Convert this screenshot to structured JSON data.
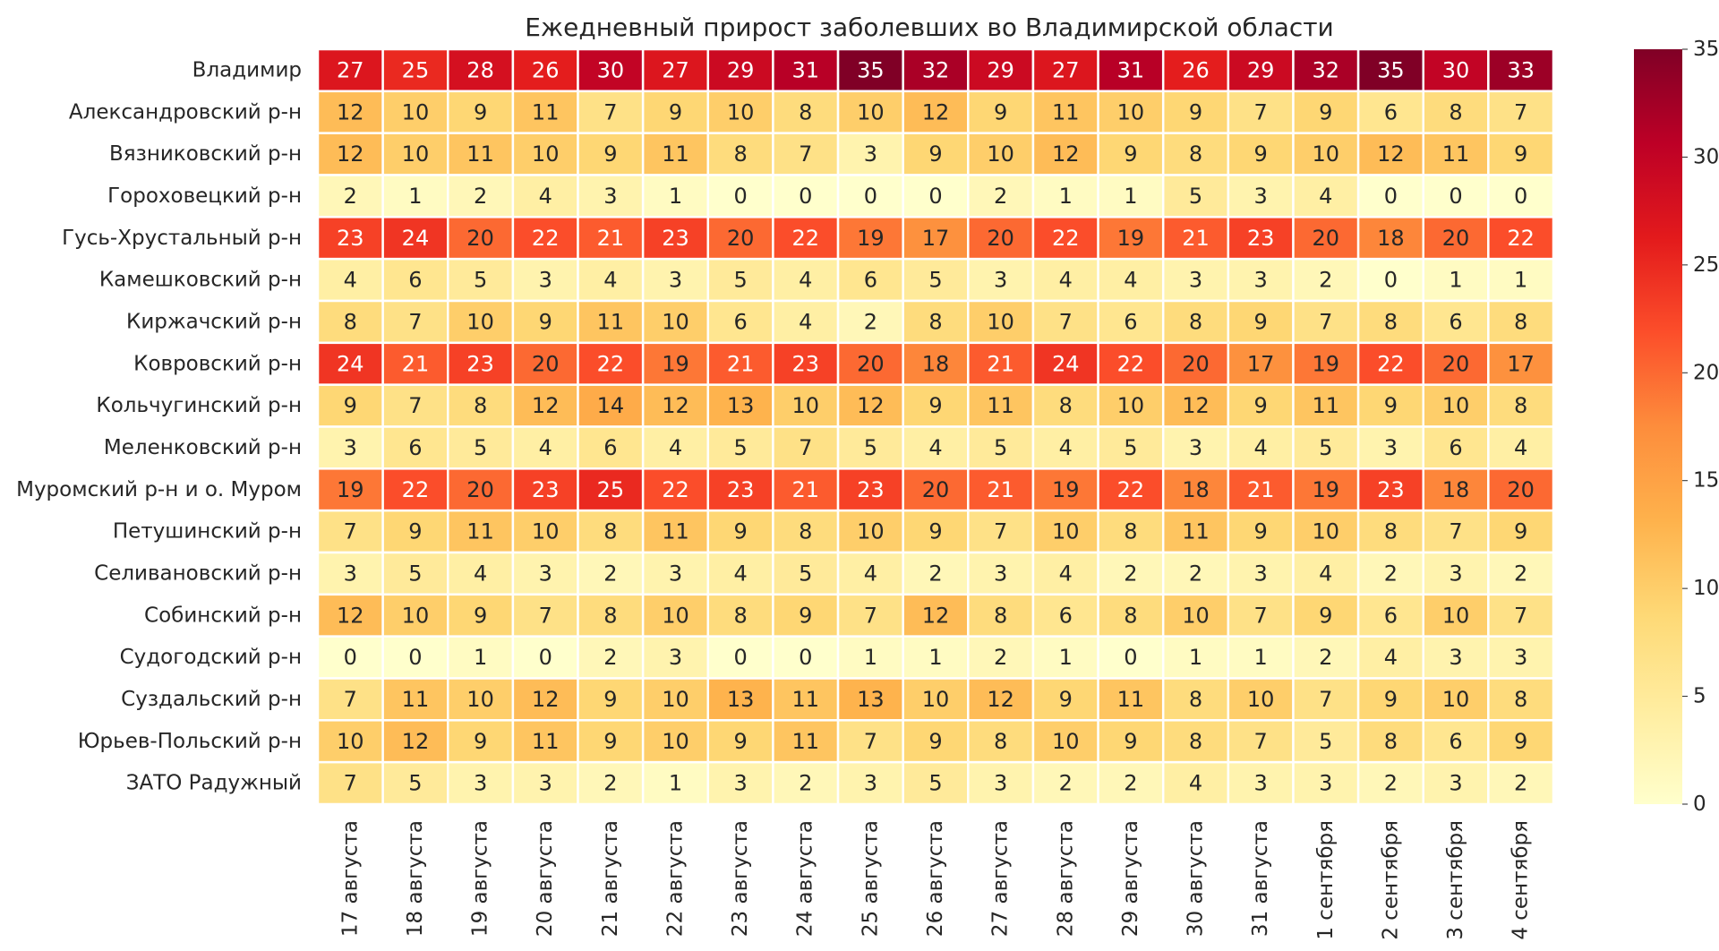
{
  "chart_data": {
    "type": "heatmap",
    "title": "Ежедневный прирост заболевших во Владимирской области",
    "xlabel": "",
    "ylabel": "",
    "x": [
      "17 августа",
      "18 августа",
      "19 августа",
      "20 августа",
      "21 августа",
      "22 августа",
      "23 августа",
      "24 августа",
      "25 августа",
      "26 августа",
      "27 августа",
      "28 августа",
      "29 августа",
      "30 августа",
      "31 августа",
      "1 сентября",
      "2 сентября",
      "3 сентября",
      "4 сентября"
    ],
    "y": [
      "Владимир",
      "Александровский р-н",
      "Вязниковский р-н",
      "Гороховецкий р-н",
      "Гусь-Хрустальный р-н",
      "Камешковский р-н",
      "Киржачский р-н",
      "Ковровский р-н",
      "Кольчугинский р-н",
      "Меленковский р-н",
      "Муромский р-н и о. Муром",
      "Петушинский р-н",
      "Селивановский р-н",
      "Собинский р-н",
      "Судогодский р-н",
      "Суздальский р-н",
      "Юрьев-Польский р-н",
      "ЗАТО Радужный"
    ],
    "values": [
      [
        27,
        25,
        28,
        26,
        30,
        27,
        29,
        31,
        35,
        32,
        29,
        27,
        31,
        26,
        29,
        32,
        35,
        30,
        33
      ],
      [
        12,
        10,
        9,
        11,
        7,
        9,
        10,
        8,
        10,
        12,
        9,
        11,
        10,
        9,
        7,
        9,
        6,
        8,
        7
      ],
      [
        12,
        10,
        11,
        10,
        9,
        11,
        8,
        7,
        3,
        9,
        10,
        12,
        9,
        8,
        9,
        10,
        12,
        11,
        9
      ],
      [
        2,
        1,
        2,
        4,
        3,
        1,
        0,
        0,
        0,
        0,
        2,
        1,
        1,
        5,
        3,
        4,
        0,
        0,
        0
      ],
      [
        23,
        24,
        20,
        22,
        21,
        23,
        20,
        22,
        19,
        17,
        20,
        22,
        19,
        21,
        23,
        20,
        18,
        20,
        22
      ],
      [
        4,
        6,
        5,
        3,
        4,
        3,
        5,
        4,
        6,
        5,
        3,
        4,
        4,
        3,
        3,
        2,
        0,
        1,
        1
      ],
      [
        8,
        7,
        10,
        9,
        11,
        10,
        6,
        4,
        2,
        8,
        10,
        7,
        6,
        8,
        9,
        7,
        8,
        6,
        8
      ],
      [
        24,
        21,
        23,
        20,
        22,
        19,
        21,
        23,
        20,
        18,
        21,
        24,
        22,
        20,
        17,
        19,
        22,
        20,
        17
      ],
      [
        9,
        7,
        8,
        12,
        14,
        12,
        13,
        10,
        12,
        9,
        11,
        8,
        10,
        12,
        9,
        11,
        9,
        10,
        8
      ],
      [
        3,
        6,
        5,
        4,
        6,
        4,
        5,
        7,
        5,
        4,
        5,
        4,
        5,
        3,
        4,
        5,
        3,
        6,
        4
      ],
      [
        19,
        22,
        20,
        23,
        25,
        22,
        23,
        21,
        23,
        20,
        21,
        19,
        22,
        18,
        21,
        19,
        23,
        18,
        20
      ],
      [
        7,
        9,
        11,
        10,
        8,
        11,
        9,
        8,
        10,
        9,
        7,
        10,
        8,
        11,
        9,
        10,
        8,
        7,
        9
      ],
      [
        3,
        5,
        4,
        3,
        2,
        3,
        4,
        5,
        4,
        2,
        3,
        4,
        2,
        2,
        3,
        4,
        2,
        3,
        2
      ],
      [
        12,
        10,
        9,
        7,
        8,
        10,
        8,
        9,
        7,
        12,
        8,
        6,
        8,
        10,
        7,
        9,
        6,
        10,
        7
      ],
      [
        0,
        0,
        1,
        0,
        2,
        3,
        0,
        0,
        1,
        1,
        2,
        1,
        0,
        1,
        1,
        2,
        4,
        3,
        3
      ],
      [
        7,
        11,
        10,
        12,
        9,
        10,
        13,
        11,
        13,
        10,
        12,
        9,
        11,
        8,
        10,
        7,
        9,
        10,
        8
      ],
      [
        10,
        12,
        9,
        11,
        9,
        10,
        9,
        11,
        7,
        9,
        8,
        10,
        9,
        8,
        7,
        5,
        8,
        6,
        9
      ],
      [
        7,
        5,
        3,
        3,
        2,
        1,
        3,
        2,
        3,
        5,
        3,
        2,
        2,
        4,
        3,
        3,
        2,
        3,
        2
      ]
    ],
    "colormap": "YlOrRd",
    "vmin": 0,
    "vmax": 35,
    "colorbar_ticks": [
      0,
      5,
      10,
      15,
      20,
      25,
      30,
      35
    ],
    "annotated": true
  }
}
